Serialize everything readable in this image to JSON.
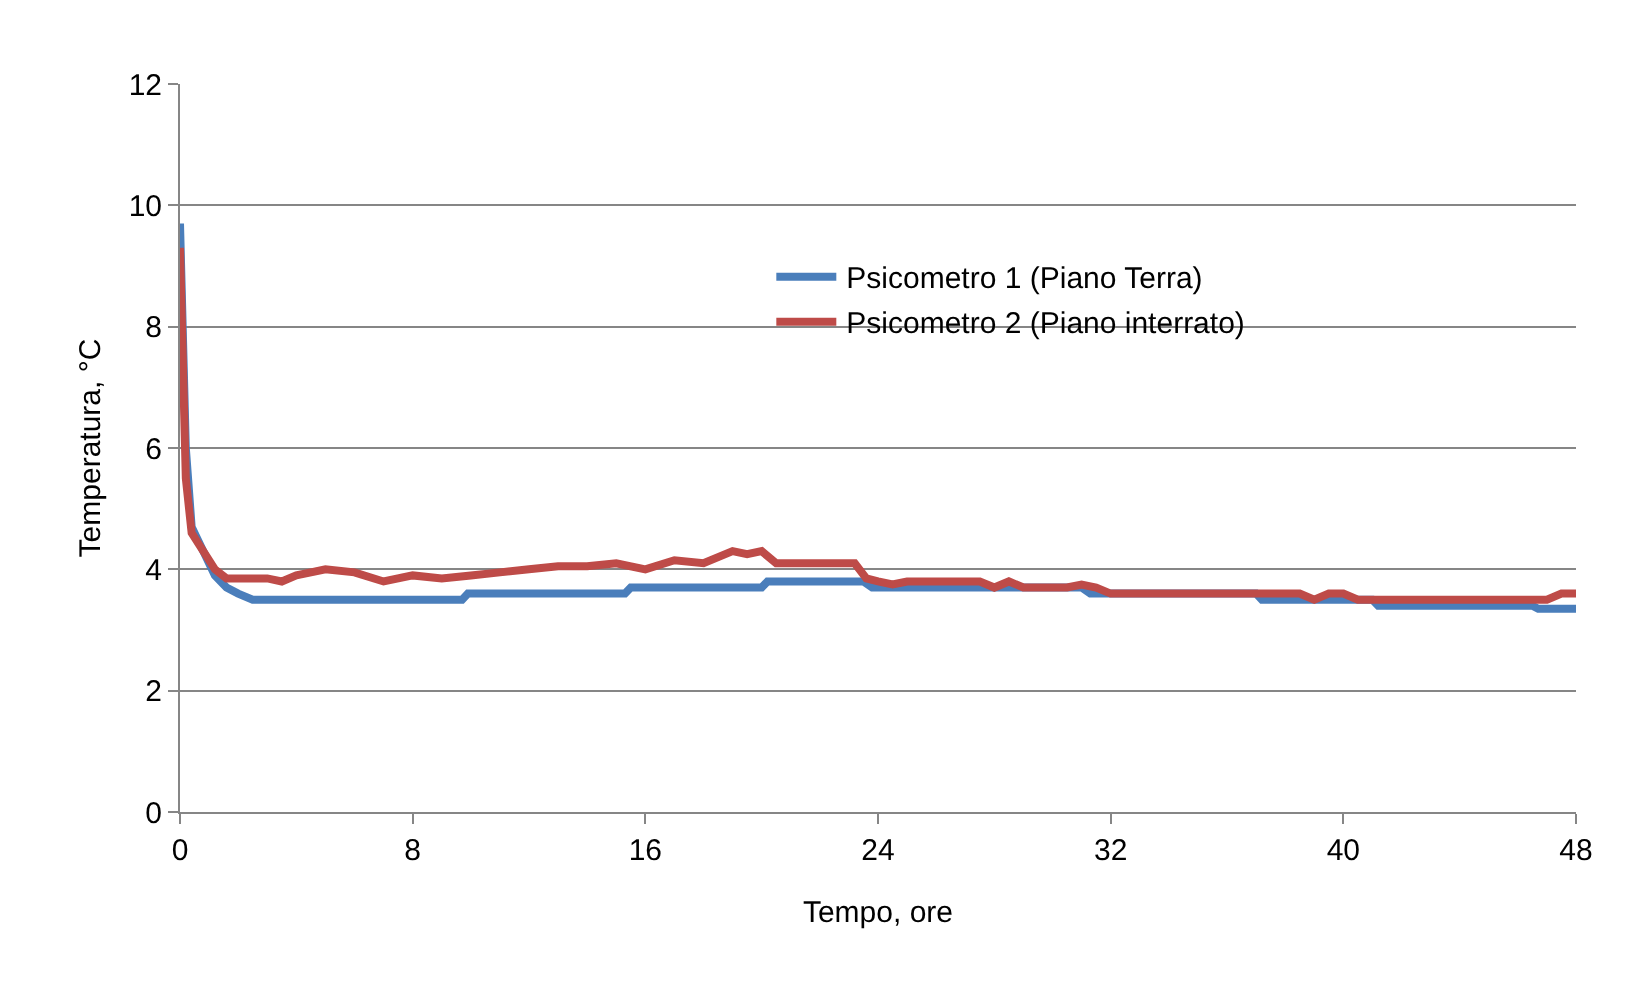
{
  "chart_data": {
    "type": "line",
    "xlabel": "Tempo, ore",
    "ylabel": "Temperatura, °C",
    "xlim": [
      0,
      48
    ],
    "xticks": [
      0,
      8,
      16,
      24,
      32,
      40,
      48
    ],
    "ylim": [
      0,
      12
    ],
    "yticks": [
      0,
      2,
      4,
      6,
      8,
      10,
      12
    ],
    "grid": "y",
    "legend": "top right",
    "marker": "none",
    "line_style": "solid",
    "series": [
      {
        "name": "Psicometro 1 (Piano Terra)",
        "color": "#4a7ebb",
        "x": [
          0,
          0.2,
          0.4,
          0.8,
          1.2,
          1.6,
          2,
          2.5,
          9.7,
          9.9,
          15.3,
          15.5,
          20,
          20.2,
          23.5,
          23.8,
          31,
          31.3,
          37,
          37.2,
          41,
          41.2,
          46.5,
          46.7,
          48
        ],
        "values": [
          9.7,
          6,
          4.7,
          4.3,
          3.9,
          3.7,
          3.6,
          3.5,
          3.5,
          3.6,
          3.6,
          3.7,
          3.7,
          3.8,
          3.8,
          3.7,
          3.7,
          3.6,
          3.6,
          3.5,
          3.5,
          3.4,
          3.4,
          3.35,
          3.35
        ]
      },
      {
        "name": "Psicometro 2 (Piano interrato)",
        "color": "#be4b48",
        "x": [
          0,
          0.2,
          0.4,
          0.8,
          1.2,
          1.6,
          3,
          3.5,
          4,
          4.5,
          5,
          6,
          7,
          8,
          9,
          10,
          11,
          12,
          13,
          14,
          15,
          16,
          17,
          18,
          19,
          19.5,
          20,
          20.5,
          23.2,
          23.6,
          24,
          24.5,
          25,
          27.5,
          28,
          28.5,
          29,
          30.5,
          31,
          31.5,
          32,
          37,
          38.5,
          39,
          39.5,
          40,
          40.5,
          47,
          47.5,
          48
        ],
        "values": [
          9.3,
          5.5,
          4.6,
          4.3,
          4.0,
          3.85,
          3.85,
          3.8,
          3.9,
          3.95,
          4.0,
          3.95,
          3.8,
          3.9,
          3.85,
          3.9,
          3.95,
          4.0,
          4.05,
          4.05,
          4.1,
          4.0,
          4.15,
          4.1,
          4.3,
          4.25,
          4.3,
          4.1,
          4.1,
          3.85,
          3.8,
          3.75,
          3.8,
          3.8,
          3.7,
          3.8,
          3.7,
          3.7,
          3.75,
          3.7,
          3.6,
          3.6,
          3.6,
          3.5,
          3.6,
          3.6,
          3.5,
          3.5,
          3.6,
          3.6
        ]
      }
    ]
  }
}
